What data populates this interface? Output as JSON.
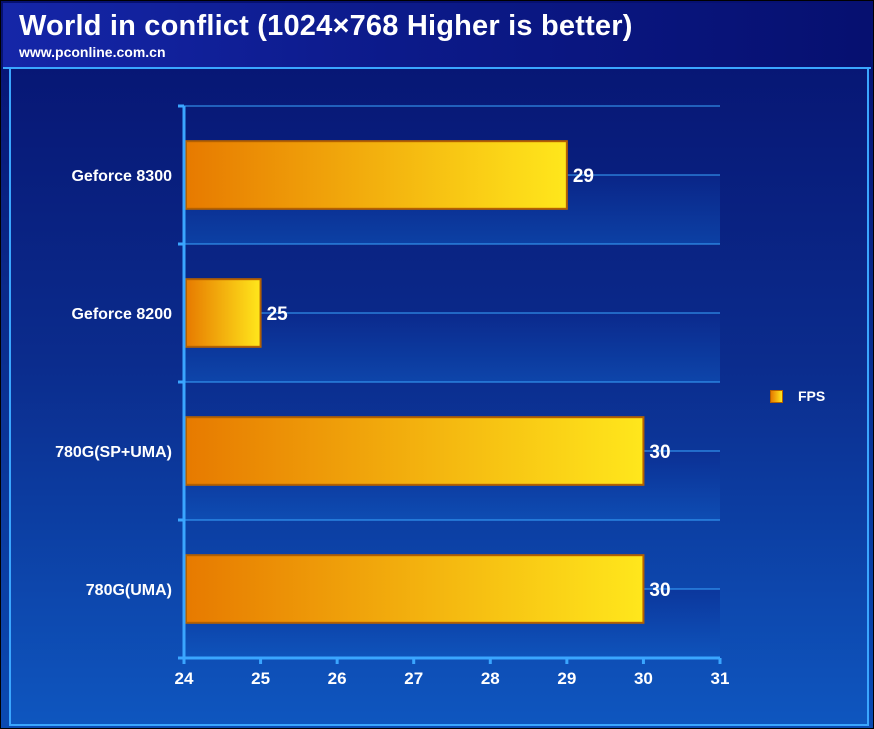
{
  "header": {
    "title": "World in conflict (1024×768 Higher is better)",
    "subtitle": "www.pconline.com.cn"
  },
  "legend": {
    "label": "FPS"
  },
  "colors": {
    "background_top": "#061070",
    "background_bottom": "#0e56bf",
    "accent_line": "#3aa6ff",
    "bar_start": "#e77a00",
    "bar_end": "#ffe71c",
    "bar_border": "#b46000"
  },
  "chart_data": {
    "type": "bar",
    "orientation": "horizontal",
    "title": "World in conflict (1024×768 Higher is better)",
    "subtitle": "www.pconline.com.cn",
    "categories": [
      "Geforce 8300",
      "Geforce 8200",
      "780G(SP+UMA)",
      "780G(UMA)"
    ],
    "series": [
      {
        "name": "FPS",
        "values": [
          29,
          25,
          30,
          30
        ]
      }
    ],
    "xlim": [
      24,
      31
    ],
    "xticks": [
      24,
      25,
      26,
      27,
      28,
      29,
      30,
      31
    ],
    "grid": true,
    "legend_position": "right"
  }
}
